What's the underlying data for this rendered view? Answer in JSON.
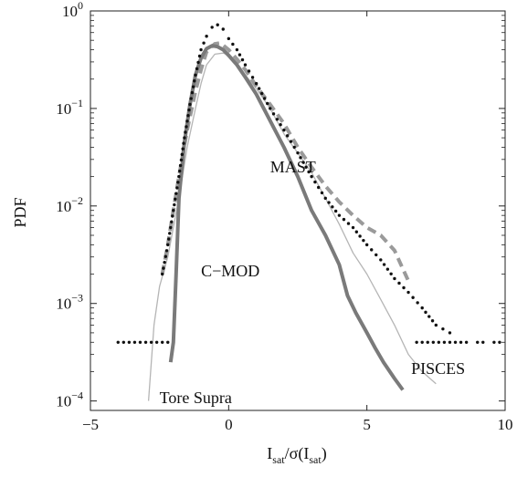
{
  "chart_data": {
    "type": "line",
    "xlabel": {
      "base": "I",
      "sub": "sat",
      "mid": "/σ(I",
      "sub2": "sat",
      "tail": ")"
    },
    "ylabel": "PDF",
    "xlim": [
      -5,
      10
    ],
    "ylim": [
      8e-05,
      1
    ],
    "yscale": "log",
    "x_ticks": [
      {
        "value": -5,
        "label": "−5"
      },
      {
        "value": 0,
        "label": "0"
      },
      {
        "value": 5,
        "label": "5"
      },
      {
        "value": 10,
        "label": "10"
      }
    ],
    "y_ticks": [
      {
        "value": 1,
        "base": "10",
        "exp": "0"
      },
      {
        "value": 0.1,
        "base": "10",
        "exp": "−1"
      },
      {
        "value": 0.01,
        "base": "10",
        "exp": "−2"
      },
      {
        "value": 0.001,
        "base": "10",
        "exp": "−3"
      },
      {
        "value": 0.0001,
        "base": "10",
        "exp": "−4"
      }
    ],
    "annotations": [
      {
        "text": "MAST",
        "x": 1.5,
        "y": 0.022
      },
      {
        "text": "C−MOD",
        "x": -1.0,
        "y": 0.0019
      },
      {
        "text": "PISCES",
        "x": 6.6,
        "y": 0.00019
      },
      {
        "text": "Tore Supra",
        "x": -2.5,
        "y": 9.5e-05
      }
    ],
    "series": [
      {
        "key": "cmod",
        "style": "solid-thick",
        "color": "#7a7a7a",
        "x": [
          -2.1,
          -2.0,
          -1.9,
          -1.8,
          -1.6,
          -1.4,
          -1.2,
          -1.0,
          -0.8,
          -0.6,
          -0.4,
          -0.2,
          0.0,
          0.3,
          0.6,
          1.0,
          1.5,
          2.0,
          2.5,
          3.0,
          3.5,
          4.0,
          4.3,
          4.6,
          5.0,
          5.3,
          5.6,
          6.0,
          6.3
        ],
        "y": [
          0.00025,
          0.0004,
          0.002,
          0.012,
          0.045,
          0.11,
          0.22,
          0.33,
          0.41,
          0.44,
          0.43,
          0.4,
          0.35,
          0.28,
          0.21,
          0.14,
          0.075,
          0.04,
          0.02,
          0.009,
          0.005,
          0.0025,
          0.0012,
          0.0008,
          0.0005,
          0.00035,
          0.00025,
          0.00017,
          0.00013
        ]
      },
      {
        "key": "pisces",
        "style": "dash-thick",
        "color": "#9a9a9a",
        "x": [
          -2.4,
          -2.2,
          -2.0,
          -1.8,
          -1.5,
          -1.2,
          -1.0,
          -0.8,
          -0.5,
          -0.3,
          0.0,
          0.3,
          0.6,
          1.0,
          1.5,
          2.0,
          2.5,
          3.0,
          3.5,
          4.0,
          4.5,
          5.0,
          5.5,
          6.0,
          6.5
        ],
        "y": [
          0.002,
          0.004,
          0.009,
          0.02,
          0.06,
          0.15,
          0.25,
          0.38,
          0.46,
          0.47,
          0.4,
          0.32,
          0.25,
          0.17,
          0.11,
          0.07,
          0.04,
          0.025,
          0.016,
          0.011,
          0.008,
          0.006,
          0.005,
          0.0035,
          0.0017
        ]
      },
      {
        "key": "tore_supra",
        "style": "solid-thin",
        "color": "#b5b5b5",
        "x": [
          -2.9,
          -2.7,
          -2.5,
          -2.2,
          -2.0,
          -1.8,
          -1.5,
          -1.2,
          -1.0,
          -0.8,
          -0.5,
          -0.2,
          0.0,
          0.3,
          0.6,
          1.0,
          1.5,
          2.0,
          2.5,
          3.0,
          3.5,
          4.0,
          4.5,
          5.0,
          5.5,
          6.0,
          6.5,
          7.0,
          7.5
        ],
        "y": [
          0.0001,
          0.0006,
          0.0015,
          0.003,
          0.006,
          0.012,
          0.04,
          0.1,
          0.18,
          0.28,
          0.36,
          0.37,
          0.35,
          0.29,
          0.22,
          0.16,
          0.1,
          0.055,
          0.035,
          0.022,
          0.012,
          0.0065,
          0.0033,
          0.002,
          0.0011,
          0.0006,
          0.0003,
          0.0002,
          0.00015
        ]
      },
      {
        "key": "mast",
        "style": "dotted-black",
        "color": "#111111",
        "x": [
          -2.4,
          -2.2,
          -2.0,
          -1.8,
          -1.6,
          -1.4,
          -1.2,
          -1.0,
          -0.8,
          -0.6,
          -0.4,
          -0.2,
          0.0,
          0.3,
          0.6,
          1.0,
          1.5,
          2.0,
          2.5,
          3.0,
          3.5,
          4.0,
          4.5,
          5.0,
          5.5,
          6.0,
          6.5,
          7.0,
          7.5,
          8.0
        ],
        "y": [
          0.002,
          0.004,
          0.009,
          0.02,
          0.05,
          0.11,
          0.22,
          0.4,
          0.55,
          0.68,
          0.72,
          0.65,
          0.52,
          0.4,
          0.28,
          0.18,
          0.1,
          0.06,
          0.035,
          0.02,
          0.012,
          0.008,
          0.006,
          0.004,
          0.0028,
          0.0018,
          0.0013,
          0.0009,
          0.0006,
          0.0005
        ]
      },
      {
        "key": "baseline_dots",
        "style": "dotted-black",
        "color": "#111111",
        "x": [
          -4.0,
          -3.8,
          -3.6,
          -3.4,
          -3.2,
          -3.0,
          -2.8,
          -2.6,
          -2.4,
          -2.2,
          6.8,
          7.0,
          7.2,
          7.4,
          7.6,
          7.8,
          8.0,
          8.2,
          8.4,
          8.6,
          9.0,
          9.2,
          9.6,
          9.8
        ],
        "y": [
          0.0004,
          0.0004,
          0.0004,
          0.0004,
          0.0004,
          0.0004,
          0.0004,
          0.0004,
          0.0004,
          0.0004,
          0.0004,
          0.0004,
          0.0004,
          0.0004,
          0.0004,
          0.0004,
          0.0004,
          0.0004,
          0.0004,
          0.0004,
          0.0004,
          0.0004,
          0.0004,
          0.0004
        ]
      }
    ]
  }
}
